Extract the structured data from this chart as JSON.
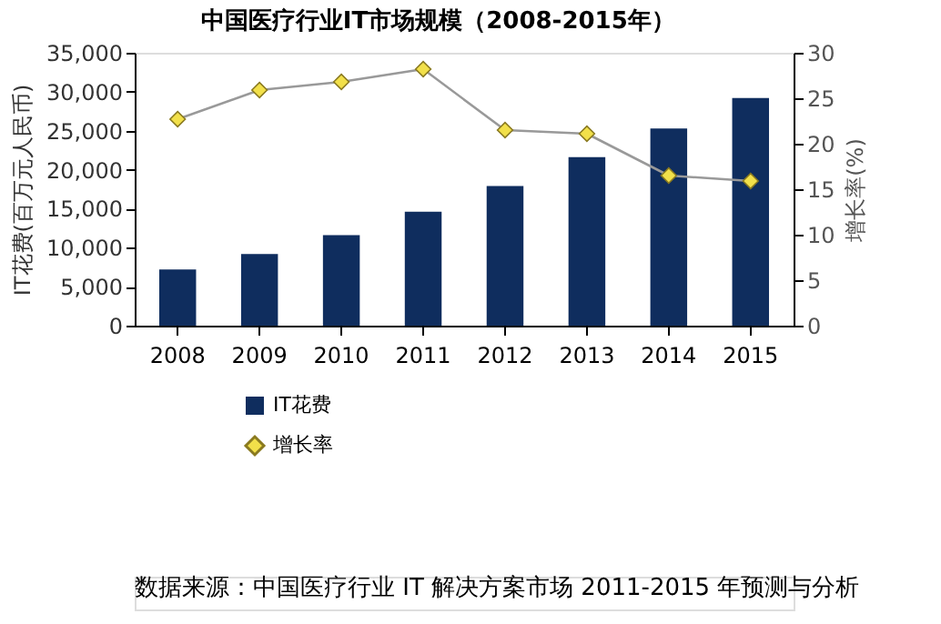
{
  "chart_data": {
    "type": "bar",
    "title": "中国医疗行业IT市场规模（2008-2015年）",
    "categories": [
      "2008",
      "2009",
      "2010",
      "2011",
      "2012",
      "2013",
      "2014",
      "2015"
    ],
    "series": [
      {
        "name": "IT花费",
        "color": "#0f2d5e",
        "values": [
          7200,
          9200,
          11600,
          14600,
          17900,
          21600,
          25300,
          29200
        ]
      },
      {
        "name": "增长率",
        "type": "line",
        "axis": "y2",
        "color": "#f2e04a",
        "values": [
          22.7,
          25.9,
          26.8,
          28.2,
          21.5,
          21.1,
          16.5,
          15.9
        ]
      }
    ],
    "ylabel": "IT花费(百万元人民币)",
    "y2label": "增长率(%)",
    "ylim": [
      0,
      35000
    ],
    "yticks": [
      0,
      {
        "value": 5000,
        "label": "5,000"
      },
      {
        "value": 10000,
        "label": "10,000"
      },
      {
        "value": 15000,
        "label": "15,000"
      },
      {
        "value": 20000,
        "label": "20,000"
      },
      {
        "value": 25000,
        "label": "25,000"
      },
      {
        "value": 30000,
        "label": "30,000"
      },
      {
        "value": 35000,
        "label": "35,000"
      }
    ],
    "y2lim": [
      0,
      30
    ],
    "y2ticks": [
      0,
      5,
      10,
      15,
      20,
      25,
      30
    ],
    "marker": "diamond",
    "line_style": "solid",
    "grid": false,
    "legend": "bottom left",
    "annotations": [
      "数据来源：中国医疗行业 IT 解决方案市场 2011-2015 年预测与分析"
    ]
  }
}
